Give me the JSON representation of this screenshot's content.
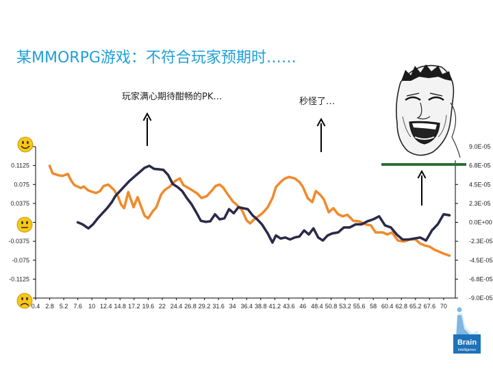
{
  "slide": {
    "title": "某MMORPG游戏：不符合玩家预期时……",
    "logo_text": [
      "Brain",
      "Intelligence"
    ],
    "accent_color": "#1e9fd8"
  },
  "annotations": [
    {
      "text": "玩家满心期待酣畅的PK…",
      "arrow": "up"
    },
    {
      "text": "秒怪了…",
      "arrow": "up"
    }
  ],
  "chart_data": {
    "type": "line",
    "title": "",
    "x_tick_labels": [
      "0.4",
      "2.8",
      "5.2",
      "7.6",
      "10",
      "12.4",
      "14.8",
      "17.2",
      "19.6",
      "22",
      "24.4",
      "26.8",
      "29.2",
      "31.6",
      "34",
      "36.4",
      "38.8",
      "41.2",
      "43.6",
      "46",
      "48.4",
      "50.8",
      "53.2",
      "55.6",
      "58",
      "60.4",
      "62.8",
      "65.2",
      "67.6",
      "70"
    ],
    "x_range": [
      0.4,
      72
    ],
    "y_left": {
      "range": [
        -0.15,
        0.15
      ],
      "tick_labels": [
        "0",
        "0.1125",
        "0.075",
        "0.0375",
        "0",
        "-0.0375",
        "-0.075",
        "-0.1125",
        "-0"
      ],
      "emoji_markers": [
        {
          "value": 0.15,
          "mood": "happy"
        },
        {
          "value": 0,
          "mood": "neutral"
        },
        {
          "value": -0.15,
          "mood": "sad"
        }
      ]
    },
    "y_right": {
      "range": [
        -0.0009,
        0.0009
      ],
      "tick_labels": [
        "9.0E-05",
        "6.8E-05",
        "4.5E-05",
        "2.3E-05",
        "0.0E+00",
        "-2.3E-05",
        "-4.5E-05",
        "-6.8E-05",
        "-9.0E-05"
      ]
    },
    "grid": false,
    "legend": "none",
    "series": [
      {
        "color": "#f08a2c",
        "axis": "left",
        "x": [
          2.8,
          3.3,
          4.4,
          5.0,
          5.9,
          6.5,
          7.0,
          8.1,
          8.6,
          9.4,
          10.7,
          11.4,
          12.0,
          12.8,
          13.8,
          14.5,
          15.0,
          15.5,
          16.2,
          17.1,
          17.8,
          18.5,
          19.0,
          19.6,
          20.4,
          21.0,
          21.8,
          22.4,
          23.3,
          24.2,
          25.0,
          25.6,
          26.6,
          27.2,
          28.0,
          28.7,
          29.6,
          30.4,
          31.1,
          31.8,
          32.4,
          33.2,
          34.0,
          34.8,
          35.6,
          36.4,
          37.0,
          37.6,
          38.4,
          39.1,
          40.0,
          40.8,
          41.4,
          42.2,
          42.8,
          43.6,
          44.6,
          45.4,
          46.0,
          46.8,
          47.6,
          48.2,
          49.0,
          49.6,
          50.4,
          51.2,
          52.0,
          52.8,
          53.6,
          54.6,
          55.6,
          56.6,
          57.6,
          58.4,
          59.6,
          60.4,
          61.2,
          62.2,
          63.2,
          64.2,
          65.2,
          66.0,
          66.8,
          67.6,
          68.4,
          69.2,
          70.0,
          71.0
        ],
        "values": [
          0.112,
          0.097,
          0.093,
          0.092,
          0.096,
          0.082,
          0.074,
          0.068,
          0.071,
          0.063,
          0.058,
          0.062,
          0.072,
          0.075,
          0.064,
          0.05,
          0.035,
          0.028,
          0.06,
          0.03,
          0.05,
          0.028,
          0.013,
          0.008,
          0.022,
          0.03,
          0.055,
          0.064,
          0.071,
          0.082,
          0.087,
          0.074,
          0.067,
          0.063,
          0.057,
          0.048,
          0.052,
          0.062,
          0.072,
          0.075,
          0.069,
          0.055,
          0.042,
          0.034,
          0.024,
          0.004,
          -0.002,
          0.005,
          0.012,
          0.018,
          0.03,
          0.048,
          0.07,
          0.08,
          0.086,
          0.09,
          0.087,
          0.08,
          0.07,
          0.048,
          0.04,
          0.062,
          0.054,
          0.045,
          0.02,
          0.028,
          0.016,
          0.012,
          0.015,
          0.003,
          0.002,
          -0.004,
          -0.006,
          -0.02,
          -0.02,
          -0.024,
          -0.02,
          -0.036,
          -0.038,
          -0.034,
          -0.034,
          -0.042,
          -0.046,
          -0.048,
          -0.054,
          -0.058,
          -0.062,
          -0.066
        ]
      },
      {
        "color": "#2a2a4a",
        "axis": "left",
        "x": [
          7.6,
          8.4,
          9.4,
          10.2,
          11.0,
          11.8,
          12.6,
          13.4,
          14.0,
          14.8,
          15.6,
          16.4,
          17.4,
          18.2,
          19.0,
          19.8,
          20.6,
          21.4,
          22.2,
          23.0,
          23.8,
          24.6,
          25.4,
          26.2,
          27.0,
          27.8,
          28.6,
          29.4,
          30.2,
          31.0,
          31.8,
          32.6,
          33.4,
          34.2,
          35.0,
          35.8,
          36.6,
          37.4,
          38.2,
          39.0,
          40.0,
          40.8,
          41.4,
          42.2,
          43.0,
          43.8,
          44.6,
          45.4,
          46.2,
          47.0,
          47.8,
          48.6,
          49.4,
          50.2,
          51.0,
          52.0,
          53.0,
          54.0,
          55.0,
          56.0,
          57.0,
          58.0,
          59.0,
          60.0,
          61.0,
          62.0,
          63.0,
          64.0,
          65.0,
          66.0,
          67.0,
          68.0,
          69.0,
          70.0,
          71.0
        ],
        "values": [
          0.0,
          -0.004,
          -0.012,
          -0.004,
          0.008,
          0.018,
          0.028,
          0.04,
          0.052,
          0.062,
          0.072,
          0.082,
          0.092,
          0.1,
          0.108,
          0.112,
          0.106,
          0.105,
          0.104,
          0.094,
          0.076,
          0.07,
          0.062,
          0.048,
          0.036,
          0.02,
          0.003,
          0.001,
          0.002,
          0.016,
          0.006,
          0.008,
          0.026,
          0.018,
          0.03,
          0.028,
          0.026,
          0.014,
          0.006,
          -0.004,
          -0.022,
          -0.04,
          -0.026,
          -0.032,
          -0.03,
          -0.034,
          -0.03,
          -0.028,
          -0.016,
          -0.024,
          -0.012,
          -0.03,
          -0.036,
          -0.026,
          -0.022,
          -0.02,
          -0.01,
          -0.01,
          -0.004,
          -0.004,
          0.002,
          0.006,
          0.012,
          -0.006,
          -0.01,
          -0.024,
          -0.034,
          -0.034,
          -0.032,
          -0.03,
          -0.036,
          -0.016,
          -0.004,
          0.016,
          0.014
        ]
      }
    ]
  }
}
